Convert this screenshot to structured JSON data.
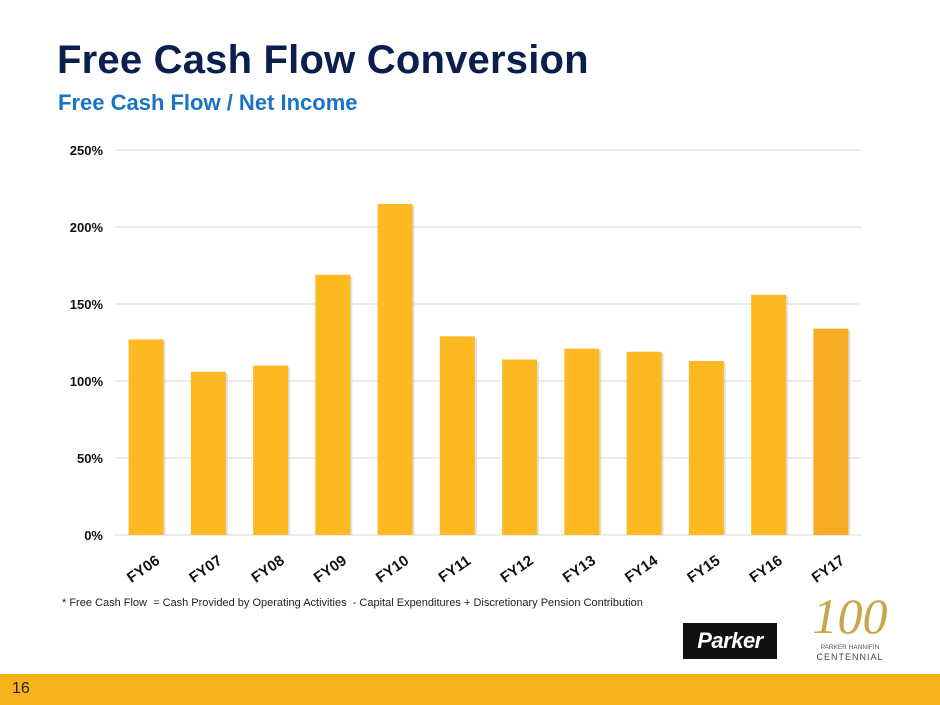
{
  "slide": {
    "title": "Free Cash Flow Conversion",
    "subtitle": "Free Cash Flow / Net Income",
    "footnote": "* Free Cash Flow  = Cash Provided by Operating Activities  - Capital Expenditures + Discretionary Pension Contribution",
    "page_number": "16",
    "logo_text": "Parker",
    "centennial_text": [
      "PARKER HANNIFIN",
      "CENTENNIAL"
    ],
    "centennial_mark": "100",
    "colors": {
      "title": "#0b1f4e",
      "subtitle": "#1a73c5",
      "bar": "#fdb921",
      "bar_last": "#f6ad23",
      "footer": "#f6b31b"
    }
  },
  "chart_data": {
    "type": "bar",
    "categories": [
      "FY06",
      "FY07",
      "FY08",
      "FY09",
      "FY10",
      "FY11",
      "FY12",
      "FY13",
      "FY14",
      "FY15",
      "FY16",
      "FY17"
    ],
    "values": [
      127,
      106,
      110,
      169,
      215,
      129,
      114,
      121,
      119,
      113,
      156,
      134
    ],
    "unit": "%",
    "ylim": [
      0,
      250
    ],
    "yticks": [
      0,
      50,
      100,
      150,
      200,
      250
    ],
    "ytick_labels": [
      "0%",
      "50%",
      "100%",
      "150%",
      "200%",
      "250%"
    ],
    "grid": true,
    "legend": "none"
  }
}
